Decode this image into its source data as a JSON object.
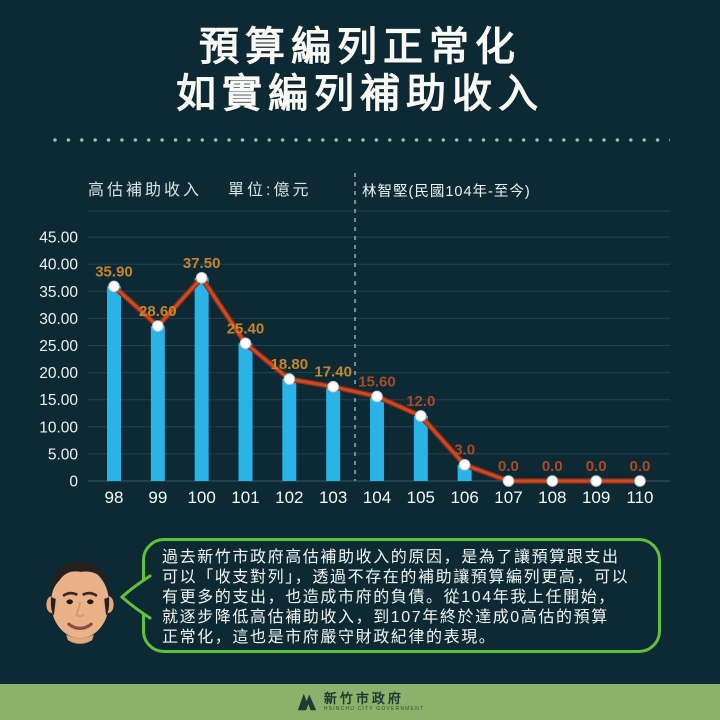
{
  "title": {
    "line1": "預算編列正常化",
    "line2": "如實編列補助收入"
  },
  "chart_data": {
    "type": "bar+line",
    "series_label": "高估補助收入",
    "unit_label": "單位:億元",
    "annotation": "林智堅(民國104年-至今)",
    "categories": [
      "98",
      "99",
      "100",
      "101",
      "102",
      "103",
      "104",
      "105",
      "106",
      "107",
      "108",
      "109",
      "110"
    ],
    "values": [
      35.9,
      28.6,
      37.5,
      25.4,
      18.8,
      17.4,
      15.6,
      12,
      3,
      0,
      0,
      0,
      0
    ],
    "point_labels": [
      "35.90",
      "28.60",
      "37.50",
      "25.40",
      "18.80",
      "17.40",
      "15.60",
      "12.0",
      "3.0",
      "0.0",
      "0.0",
      "0.0",
      "0.0"
    ],
    "era_start_index": 6,
    "divider_after_index": 5,
    "ylim": [
      0,
      50
    ],
    "grid": true,
    "legend_position": "none",
    "yticks": [
      {
        "v": 45,
        "label": "45.00"
      },
      {
        "v": 40,
        "label": "40.00"
      },
      {
        "v": 35,
        "label": "35.00"
      },
      {
        "v": 30,
        "label": "30.00"
      },
      {
        "v": 25,
        "label": "25.00"
      },
      {
        "v": 20,
        "label": "20.00"
      },
      {
        "v": 15,
        "label": "15.00"
      },
      {
        "v": 10,
        "label": "10.00"
      },
      {
        "v": 5,
        "label": "5.00"
      },
      {
        "v": 0,
        "label": "0"
      }
    ]
  },
  "speech": {
    "lines": [
      "過去新竹市政府高估補助收入的原因，是為了讓預算跟支出",
      "可以「收支對列」，透過不存在的補助讓預算編列更高，可以",
      "有更多的支出，也造成市府的負債。從104年我上任開始，",
      "就逐步降低高估補助收入，到107年終於達成0高估的預算",
      "正常化，這也是市府嚴守財政紀律的表現。"
    ]
  },
  "footer": {
    "org_name": "新竹市政府",
    "org_caption": "HSINCHU CITY GOVERNMENT"
  },
  "colors": {
    "background": "#0d2a34",
    "bar": "#29b3e6",
    "line": "#cc4a22",
    "line_edge": "#8a2c15",
    "label_gold": "#c5862e",
    "label_red": "#ab4a24",
    "grid": "#22434d",
    "grid_zero": "#3a5a63",
    "divider_dash": "#93abb3",
    "axis_text": "#eef3f4",
    "bubble_border": "#5fc13c",
    "footer_band": "#8ab26a",
    "dot_separator": "#9ec4a0"
  }
}
